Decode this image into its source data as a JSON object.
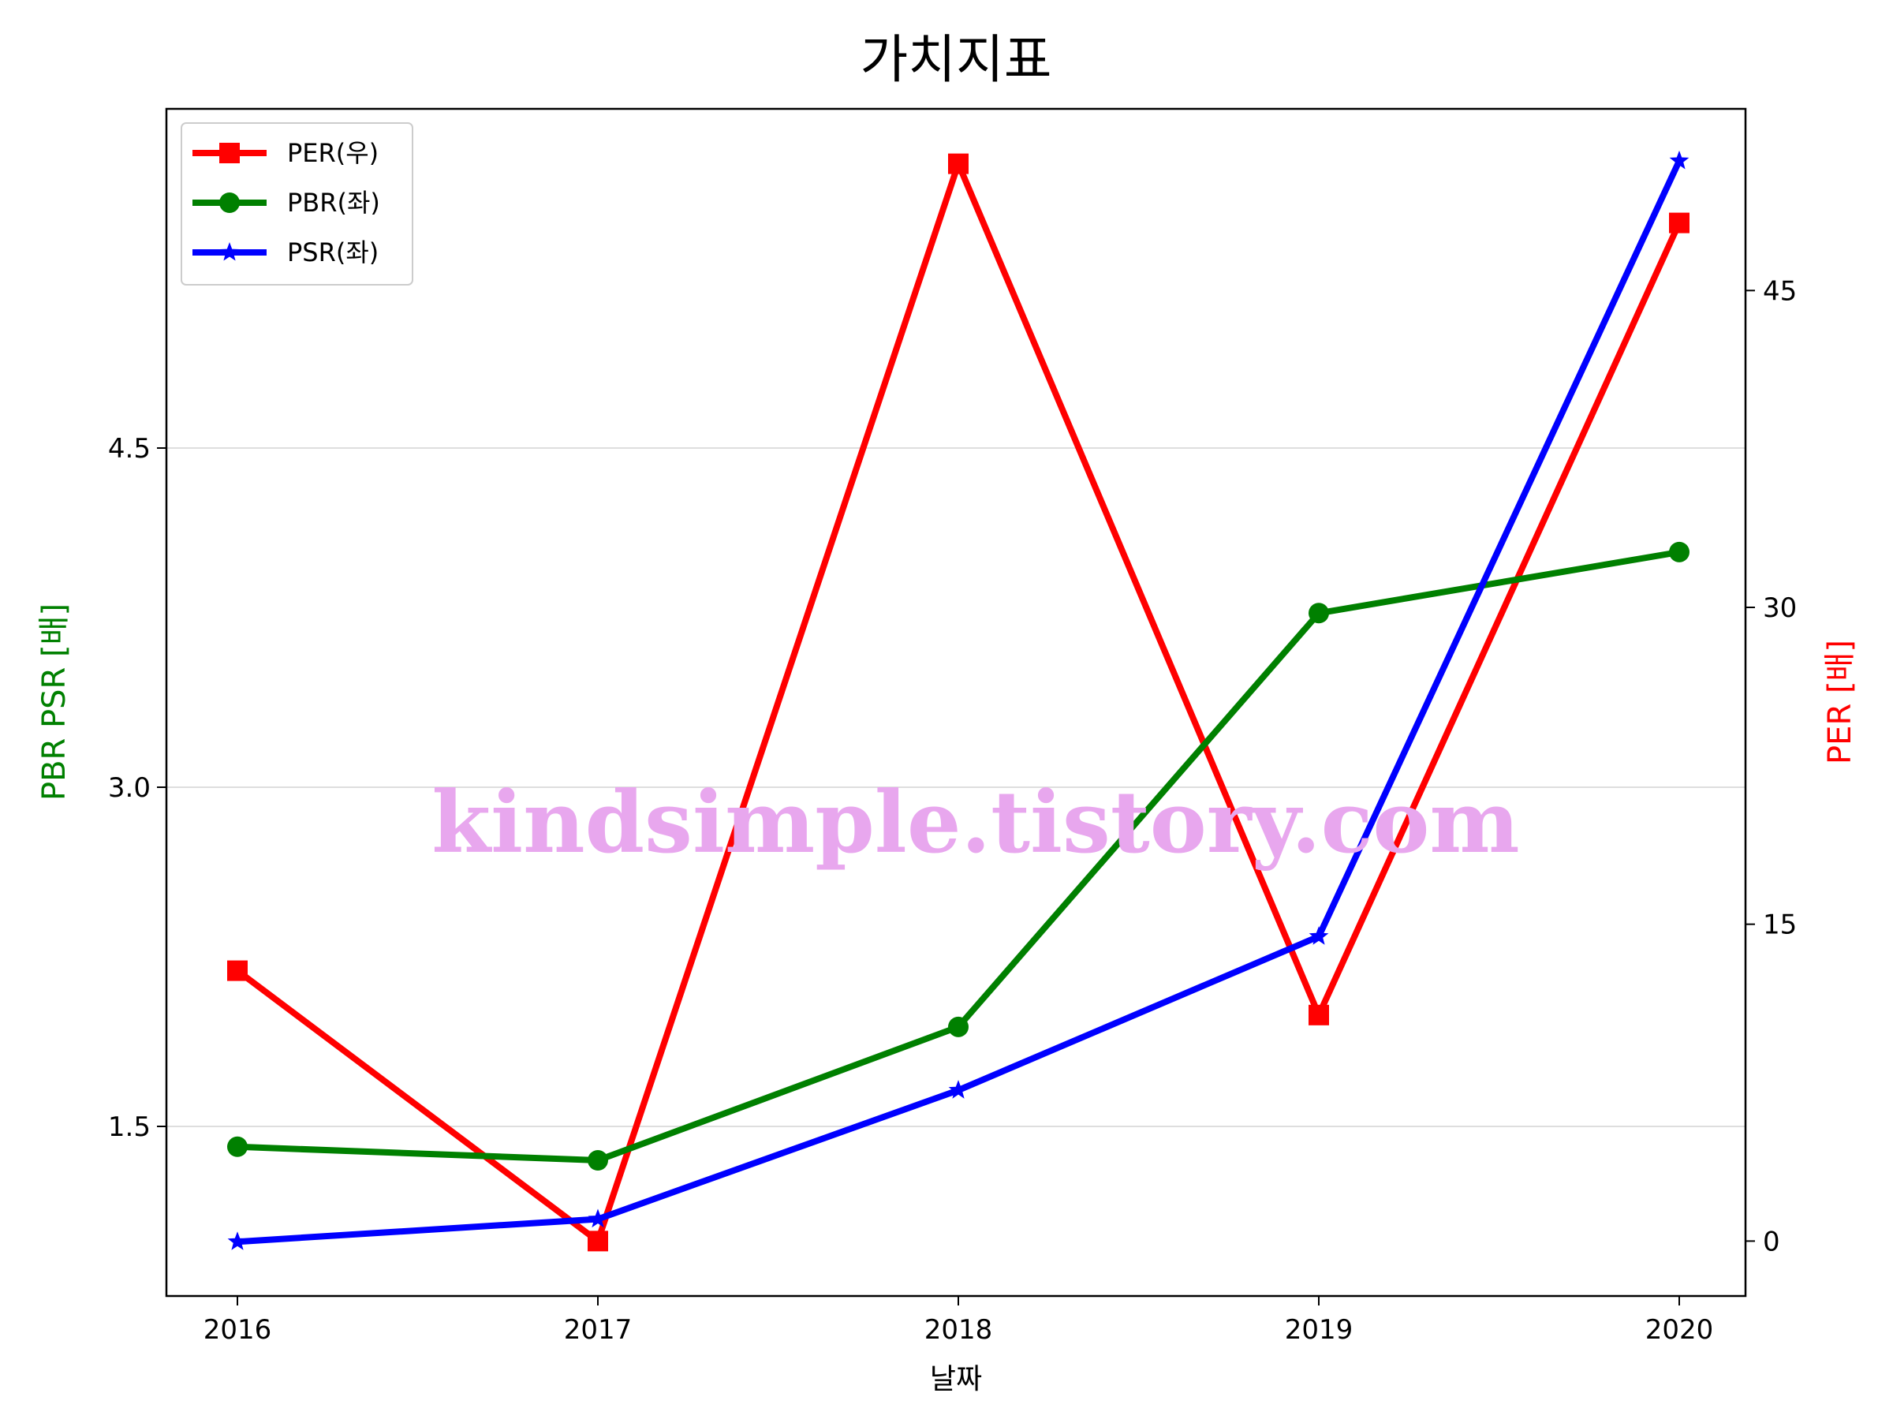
{
  "chart_data": {
    "type": "line",
    "title": "가치지표",
    "xlabel": "날짜",
    "ylabel_left": "PBR PSR [배]",
    "ylabel_right": "PER [배]",
    "categories": [
      "2016",
      "2017",
      "2018",
      "2019",
      "2020"
    ],
    "left_axis": {
      "ylim": [
        0.75,
        6.0
      ],
      "ticks": [
        1.5,
        3.0,
        4.5
      ],
      "tick_labels": [
        "1.5",
        "3.0",
        "4.5"
      ],
      "color": "#008000"
    },
    "right_axis": {
      "ylim": [
        -2.6,
        53.6
      ],
      "ticks": [
        0,
        15,
        30,
        45
      ],
      "tick_labels": [
        "0",
        "15",
        "30",
        "45"
      ],
      "color": "#ff0000"
    },
    "grid": "horizontal (left axis)",
    "legend_position": "top-left",
    "series": [
      {
        "name": "PER(우)",
        "axis": "right",
        "color": "#ff0000",
        "marker": "square",
        "values": [
          12.8,
          0.0,
          51.0,
          10.7,
          48.2
        ]
      },
      {
        "name": "PBR(좌)",
        "axis": "left",
        "color": "#008000",
        "marker": "circle",
        "values": [
          1.41,
          1.35,
          1.94,
          3.77,
          4.04
        ]
      },
      {
        "name": "PSR(좌)",
        "axis": "left",
        "color": "#0000ff",
        "marker": "star",
        "values": [
          0.99,
          1.09,
          1.66,
          2.34,
          5.77
        ]
      }
    ],
    "watermark": "kindsimple.tistory.com"
  }
}
